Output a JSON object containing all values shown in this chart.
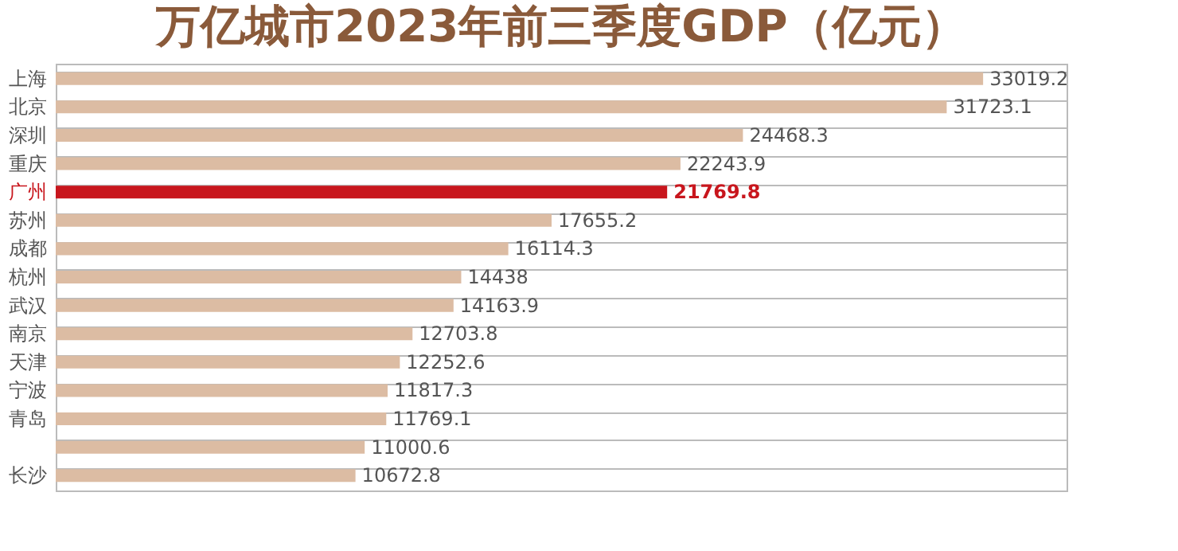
{
  "chart_data": {
    "type": "bar",
    "orientation": "horizontal",
    "title": "万亿城市2023年前三季度GDP（亿元）",
    "categories": [
      "上海",
      "北京",
      "深圳",
      "重庆",
      "广州",
      "苏州",
      "成都",
      "杭州",
      "武汉",
      "南京",
      "天津",
      "宁波",
      "青岛",
      null,
      "长沙"
    ],
    "values": [
      33019.2,
      31723.1,
      24468.3,
      22243.9,
      21769.8,
      17655.2,
      16114.3,
      14438,
      14163.9,
      12703.8,
      12252.6,
      11817.3,
      11769.1,
      11000.6,
      10672.8
    ],
    "colors": [
      "#dcbca3",
      "#dcbca3",
      "#dcbca3",
      "#dcbca3",
      "#c8161d",
      "#dcbca3",
      "#dcbca3",
      "#dcbca3",
      "#dcbca3",
      "#dcbca3",
      "#dcbca3",
      "#dcbca3",
      "#dcbca3",
      "#dcbca3",
      "#dcbca3"
    ],
    "data_labels": true,
    "grid": "y"
  }
}
